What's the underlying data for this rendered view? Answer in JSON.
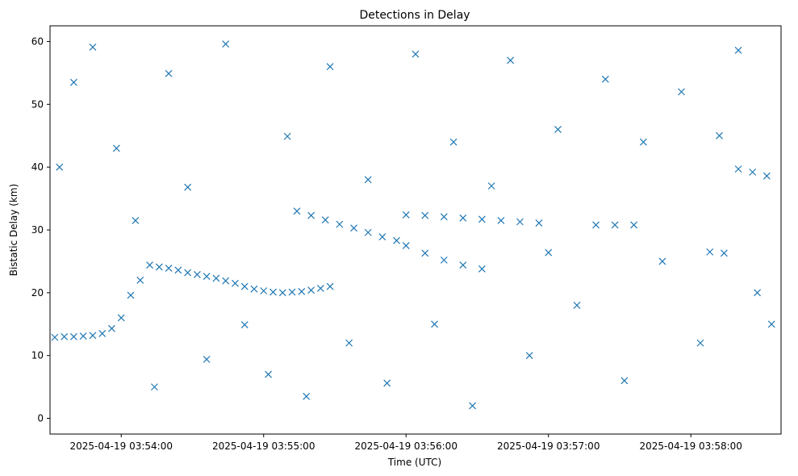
{
  "chart_data": {
    "type": "scatter",
    "title": "Detections in Delay",
    "xlabel": "Time (UTC)",
    "ylabel": "Bistatic Delay (km)",
    "ylim": [
      -2.5,
      62.5
    ],
    "xlim": [
      "2025-04-19 03:53:30",
      "2025-04-19 03:58:38"
    ],
    "x_ticks": [
      "2025-04-19 03:54:00",
      "2025-04-19 03:55:00",
      "2025-04-19 03:56:00",
      "2025-04-19 03:57:00",
      "2025-04-19 03:58:00"
    ],
    "y_ticks": [
      0,
      10,
      20,
      30,
      40,
      50,
      60
    ],
    "grid": false,
    "legend": "none",
    "marker": "x",
    "series": [
      {
        "color": "#1f77b4",
        "points": [
          [
            "2025-04-19 03:53:32",
            12.9
          ],
          [
            "2025-04-19 03:53:36",
            13.0
          ],
          [
            "2025-04-19 03:53:40",
            13.0
          ],
          [
            "2025-04-19 03:53:44",
            13.1
          ],
          [
            "2025-04-19 03:53:48",
            13.2
          ],
          [
            "2025-04-19 03:53:52",
            13.5
          ],
          [
            "2025-04-19 03:53:56",
            14.3
          ],
          [
            "2025-04-19 03:54:00",
            16.0
          ],
          [
            "2025-04-19 03:54:04",
            19.6
          ],
          [
            "2025-04-19 03:54:08",
            22.0
          ],
          [
            "2025-04-19 03:54:12",
            24.4
          ],
          [
            "2025-04-19 03:54:16",
            24.1
          ],
          [
            "2025-04-19 03:54:20",
            23.9
          ],
          [
            "2025-04-19 03:54:24",
            23.6
          ],
          [
            "2025-04-19 03:54:28",
            23.2
          ],
          [
            "2025-04-19 03:54:32",
            22.9
          ],
          [
            "2025-04-19 03:54:36",
            22.6
          ],
          [
            "2025-04-19 03:54:40",
            22.3
          ],
          [
            "2025-04-19 03:54:44",
            21.9
          ],
          [
            "2025-04-19 03:54:48",
            21.5
          ],
          [
            "2025-04-19 03:54:52",
            21.0
          ],
          [
            "2025-04-19 03:54:56",
            20.6
          ],
          [
            "2025-04-19 03:55:00",
            20.3
          ],
          [
            "2025-04-19 03:55:04",
            20.1
          ],
          [
            "2025-04-19 03:55:08",
            20.0
          ],
          [
            "2025-04-19 03:55:12",
            20.1
          ],
          [
            "2025-04-19 03:55:16",
            20.2
          ],
          [
            "2025-04-19 03:55:20",
            20.4
          ],
          [
            "2025-04-19 03:55:24",
            20.7
          ],
          [
            "2025-04-19 03:55:28",
            21.0
          ],
          [
            "2025-04-19 03:55:14",
            33.0
          ],
          [
            "2025-04-19 03:55:20",
            32.3
          ],
          [
            "2025-04-19 03:55:26",
            31.6
          ],
          [
            "2025-04-19 03:55:32",
            30.9
          ],
          [
            "2025-04-19 03:55:38",
            30.3
          ],
          [
            "2025-04-19 03:55:44",
            29.6
          ],
          [
            "2025-04-19 03:55:50",
            28.9
          ],
          [
            "2025-04-19 03:55:56",
            28.3
          ],
          [
            "2025-04-19 03:56:00",
            32.4
          ],
          [
            "2025-04-19 03:56:08",
            32.3
          ],
          [
            "2025-04-19 03:56:16",
            32.1
          ],
          [
            "2025-04-19 03:56:24",
            31.9
          ],
          [
            "2025-04-19 03:56:32",
            31.7
          ],
          [
            "2025-04-19 03:56:40",
            31.5
          ],
          [
            "2025-04-19 03:56:48",
            31.3
          ],
          [
            "2025-04-19 03:56:56",
            31.1
          ],
          [
            "2025-04-19 03:56:00",
            27.5
          ],
          [
            "2025-04-19 03:56:08",
            26.3
          ],
          [
            "2025-04-19 03:56:16",
            25.2
          ],
          [
            "2025-04-19 03:56:24",
            24.4
          ],
          [
            "2025-04-19 03:56:32",
            23.8
          ],
          [
            "2025-04-19 03:57:00",
            26.4
          ],
          [
            "2025-04-19 03:57:20",
            30.8
          ],
          [
            "2025-04-19 03:57:28",
            30.8
          ],
          [
            "2025-04-19 03:57:36",
            30.8
          ],
          [
            "2025-04-19 03:58:08",
            26.5
          ],
          [
            "2025-04-19 03:58:14",
            26.3
          ],
          [
            "2025-04-19 03:58:20",
            39.7
          ],
          [
            "2025-04-19 03:58:26",
            39.2
          ],
          [
            "2025-04-19 03:58:32",
            38.6
          ],
          [
            "2025-04-19 03:53:34",
            40.0
          ],
          [
            "2025-04-19 03:53:40",
            53.5
          ],
          [
            "2025-04-19 03:53:48",
            59.1
          ],
          [
            "2025-04-19 03:53:58",
            43.0
          ],
          [
            "2025-04-19 03:54:06",
            31.5
          ],
          [
            "2025-04-19 03:54:14",
            5.0
          ],
          [
            "2025-04-19 03:54:20",
            54.9
          ],
          [
            "2025-04-19 03:54:28",
            36.8
          ],
          [
            "2025-04-19 03:54:36",
            9.4
          ],
          [
            "2025-04-19 03:54:44",
            59.6
          ],
          [
            "2025-04-19 03:54:52",
            14.9
          ],
          [
            "2025-04-19 03:55:02",
            7.0
          ],
          [
            "2025-04-19 03:55:10",
            44.9
          ],
          [
            "2025-04-19 03:55:18",
            3.5
          ],
          [
            "2025-04-19 03:55:28",
            56.0
          ],
          [
            "2025-04-19 03:55:36",
            12.0
          ],
          [
            "2025-04-19 03:55:44",
            38.0
          ],
          [
            "2025-04-19 03:55:52",
            5.6
          ],
          [
            "2025-04-19 03:56:04",
            58.0
          ],
          [
            "2025-04-19 03:56:12",
            15.0
          ],
          [
            "2025-04-19 03:56:20",
            44.0
          ],
          [
            "2025-04-19 03:56:28",
            2.0
          ],
          [
            "2025-04-19 03:56:36",
            37.0
          ],
          [
            "2025-04-19 03:56:44",
            57.0
          ],
          [
            "2025-04-19 03:56:52",
            10.0
          ],
          [
            "2025-04-19 03:57:04",
            46.0
          ],
          [
            "2025-04-19 03:57:12",
            18.0
          ],
          [
            "2025-04-19 03:57:24",
            54.0
          ],
          [
            "2025-04-19 03:57:32",
            6.0
          ],
          [
            "2025-04-19 03:57:40",
            44.0
          ],
          [
            "2025-04-19 03:57:48",
            25.0
          ],
          [
            "2025-04-19 03:57:56",
            52.0
          ],
          [
            "2025-04-19 03:58:04",
            12.0
          ],
          [
            "2025-04-19 03:58:12",
            45.0
          ],
          [
            "2025-04-19 03:58:20",
            58.6
          ],
          [
            "2025-04-19 03:58:28",
            20.0
          ],
          [
            "2025-04-19 03:58:34",
            15.0
          ]
        ]
      }
    ]
  }
}
